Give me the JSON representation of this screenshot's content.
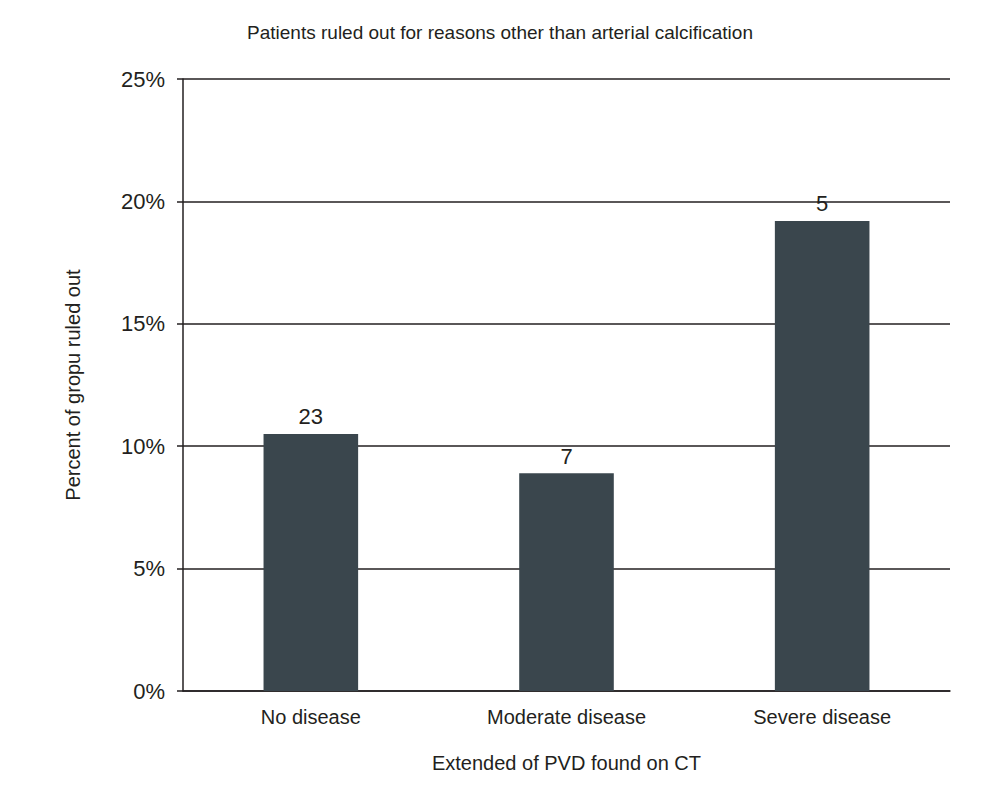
{
  "chart_data": {
    "type": "bar",
    "title": "Patients ruled out for reasons other than arterial calcification",
    "x_label": "Extended of PVD found on CT",
    "y_label": "Percent of gropu ruled out",
    "categories": [
      "No disease",
      "Moderate disease",
      "Severe disease"
    ],
    "values": [
      10.5,
      8.9,
      19.2
    ],
    "counts": [
      23,
      7,
      5
    ],
    "color": "#3a464d",
    "ylim": [
      0,
      25
    ],
    "yticks": [
      {
        "value": 0,
        "label": "0%"
      },
      {
        "value": 5,
        "label": "5%"
      },
      {
        "value": 10,
        "label": "10%"
      },
      {
        "value": 15,
        "label": "15%"
      },
      {
        "value": 20,
        "label": "20%"
      },
      {
        "value": 25,
        "label": "25%"
      }
    ],
    "grid": true
  }
}
